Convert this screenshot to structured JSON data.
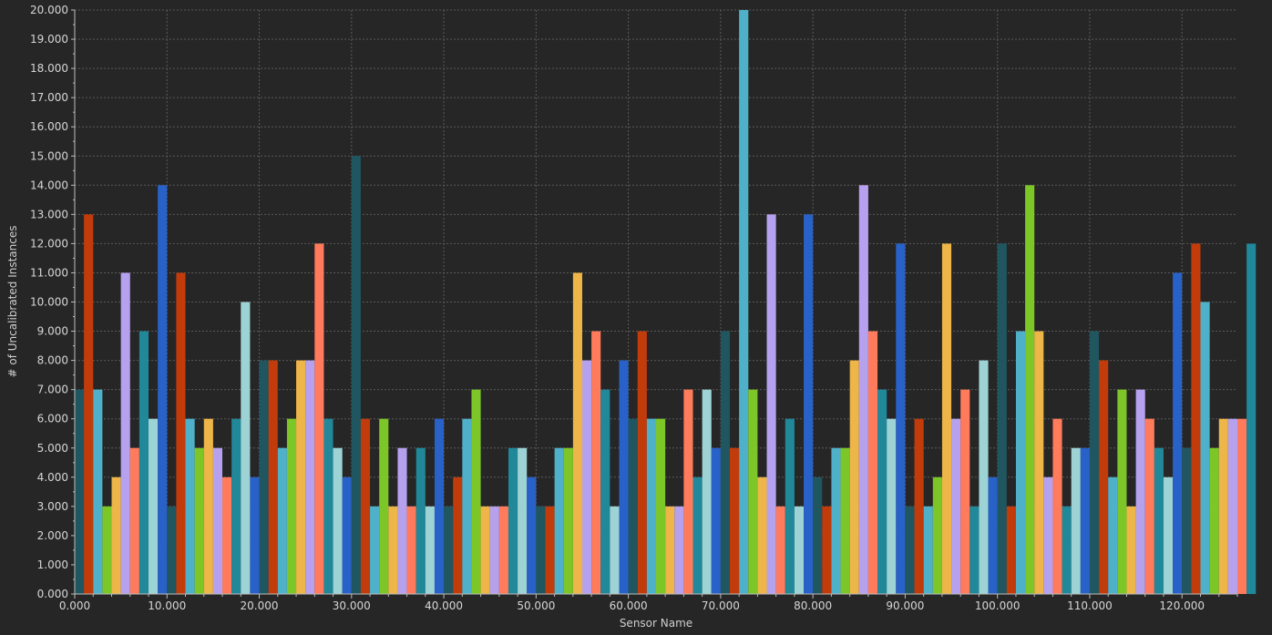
{
  "chart_data": {
    "type": "bar",
    "title": "",
    "xlabel": "Sensor Name",
    "ylabel": "# of Uncalibrated Instances",
    "xlim": [
      0,
      126
    ],
    "ylim": [
      0,
      20
    ],
    "x_ticks": [
      0,
      10,
      20,
      30,
      40,
      50,
      60,
      70,
      80,
      90,
      100,
      110,
      120
    ],
    "y_ticks": [
      0,
      1,
      2,
      3,
      4,
      5,
      6,
      7,
      8,
      9,
      10,
      11,
      12,
      13,
      14,
      15,
      16,
      17,
      18,
      19,
      20
    ],
    "x_tick_labels": [
      "0.000",
      "10.000",
      "20.000",
      "30.000",
      "40.000",
      "50.000",
      "60.000",
      "70.000",
      "80.000",
      "90.000",
      "100.000",
      "110.000",
      "120.000"
    ],
    "y_tick_labels": [
      "0.000",
      "1.000",
      "2.000",
      "3.000",
      "4.000",
      "5.000",
      "6.000",
      "7.000",
      "8.000",
      "9.000",
      "10.000",
      "11.000",
      "12.000",
      "13.000",
      "14.000",
      "15.000",
      "16.000",
      "17.000",
      "18.000",
      "19.000",
      "20.000"
    ],
    "grid": true,
    "bar_width": 1,
    "palette": [
      "#1f5660",
      "#c23b0b",
      "#4fb1c9",
      "#7dc628",
      "#eeb548",
      "#b6a1ef",
      "#ff7b5b",
      "#218899",
      "#9ed3d6",
      "#2861c7"
    ],
    "values": [
      7,
      13,
      7,
      3,
      4,
      11,
      5,
      9,
      6,
      14,
      3,
      11,
      6,
      5,
      6,
      5,
      4,
      6,
      10,
      4,
      8,
      8,
      5,
      6,
      8,
      8,
      12,
      6,
      5,
      4,
      15,
      6,
      3,
      6,
      3,
      5,
      3,
      5,
      3,
      6,
      3,
      4,
      6,
      7,
      3,
      3,
      3,
      5,
      5,
      4,
      3,
      3,
      5,
      5,
      11,
      8,
      9,
      7,
      3,
      8,
      6,
      9,
      6,
      6,
      3,
      3,
      7,
      4,
      7,
      5,
      9,
      5,
      20,
      7,
      4,
      13,
      3,
      6,
      3,
      13,
      4,
      3,
      5,
      5,
      8,
      14,
      9,
      7,
      6,
      12,
      3,
      6,
      3,
      4,
      12,
      6,
      7,
      3,
      8,
      4,
      12,
      3,
      9,
      14,
      9,
      4,
      6,
      3,
      5,
      5,
      9,
      8,
      4,
      7,
      3,
      7,
      6,
      5,
      4,
      11,
      5,
      12,
      10,
      5,
      6,
      6,
      6,
      12
    ]
  }
}
